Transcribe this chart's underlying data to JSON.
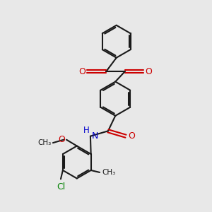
{
  "bg_color": "#e8e8e8",
  "line_color": "#1a1a1a",
  "bond_width": 1.5,
  "red_color": "#cc0000",
  "blue_color": "#0000cc",
  "green_color": "#008000",
  "figsize": [
    3.0,
    3.0
  ],
  "dpi": 100,
  "xlim": [
    0,
    10
  ],
  "ylim": [
    0,
    10
  ]
}
